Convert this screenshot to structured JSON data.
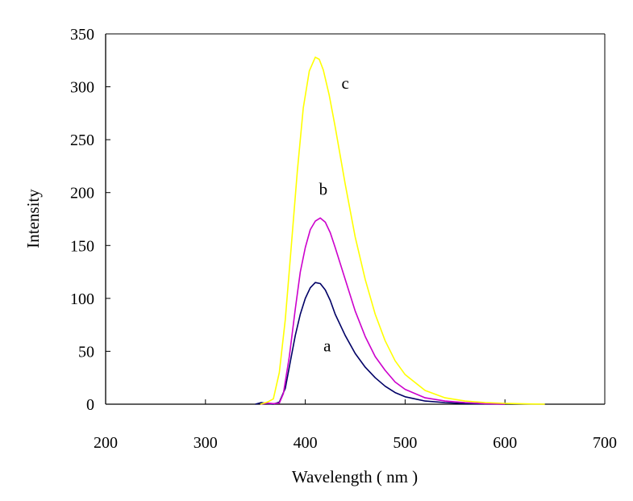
{
  "chart_data": {
    "type": "line",
    "title": "",
    "xlabel": "Wavelength ( nm )",
    "ylabel": "Intensity",
    "xlim": [
      200,
      700
    ],
    "ylim": [
      0,
      350
    ],
    "x_ticks": [
      "200",
      "300",
      "400",
      "500",
      "600",
      "700"
    ],
    "y_ticks": [
      "0",
      "50",
      "100",
      "150",
      "200",
      "250",
      "300",
      "350"
    ],
    "grid": false,
    "legend": "none",
    "series": [
      {
        "name": "a",
        "color": "#000066",
        "points": [
          [
            350,
            0
          ],
          [
            356,
            1.5
          ],
          [
            362,
            0.5
          ],
          [
            368,
            0
          ],
          [
            374,
            2
          ],
          [
            380,
            15
          ],
          [
            385,
            40
          ],
          [
            390,
            65
          ],
          [
            395,
            85
          ],
          [
            400,
            100
          ],
          [
            405,
            110
          ],
          [
            410,
            115
          ],
          [
            415,
            114
          ],
          [
            420,
            108
          ],
          [
            425,
            98
          ],
          [
            430,
            85
          ],
          [
            440,
            65
          ],
          [
            450,
            48
          ],
          [
            460,
            35
          ],
          [
            470,
            25
          ],
          [
            480,
            17
          ],
          [
            490,
            11
          ],
          [
            500,
            7
          ],
          [
            520,
            3
          ],
          [
            540,
            1.5
          ],
          [
            560,
            0.5
          ],
          [
            580,
            0.2
          ],
          [
            600,
            0
          ]
        ]
      },
      {
        "name": "b",
        "color": "#cc00cc",
        "points": [
          [
            355,
            0
          ],
          [
            362,
            1
          ],
          [
            368,
            0.5
          ],
          [
            374,
            1
          ],
          [
            378,
            10
          ],
          [
            384,
            45
          ],
          [
            390,
            90
          ],
          [
            395,
            125
          ],
          [
            400,
            148
          ],
          [
            405,
            165
          ],
          [
            410,
            173
          ],
          [
            415,
            176
          ],
          [
            420,
            172
          ],
          [
            425,
            162
          ],
          [
            430,
            148
          ],
          [
            440,
            118
          ],
          [
            450,
            88
          ],
          [
            460,
            64
          ],
          [
            470,
            45
          ],
          [
            480,
            32
          ],
          [
            490,
            21
          ],
          [
            500,
            14
          ],
          [
            520,
            6
          ],
          [
            540,
            3
          ],
          [
            560,
            1.5
          ],
          [
            580,
            0.5
          ],
          [
            600,
            0
          ]
        ]
      },
      {
        "name": "c",
        "color": "#ffff00",
        "points": [
          [
            355,
            0
          ],
          [
            362,
            2
          ],
          [
            368,
            5
          ],
          [
            374,
            30
          ],
          [
            380,
            80
          ],
          [
            386,
            150
          ],
          [
            392,
            220
          ],
          [
            398,
            280
          ],
          [
            404,
            315
          ],
          [
            410,
            328
          ],
          [
            414,
            326
          ],
          [
            418,
            316
          ],
          [
            424,
            292
          ],
          [
            430,
            262
          ],
          [
            440,
            208
          ],
          [
            450,
            158
          ],
          [
            460,
            118
          ],
          [
            470,
            85
          ],
          [
            480,
            60
          ],
          [
            490,
            41
          ],
          [
            500,
            28
          ],
          [
            520,
            13
          ],
          [
            540,
            6
          ],
          [
            560,
            3
          ],
          [
            580,
            1.5
          ],
          [
            600,
            0.8
          ],
          [
            620,
            0.3
          ],
          [
            640,
            0
          ]
        ]
      }
    ],
    "annotations": [
      {
        "text": "a",
        "x": 422,
        "y": 50
      },
      {
        "text": "b",
        "x": 418,
        "y": 198
      },
      {
        "text": "c",
        "x": 440,
        "y": 298
      }
    ]
  }
}
